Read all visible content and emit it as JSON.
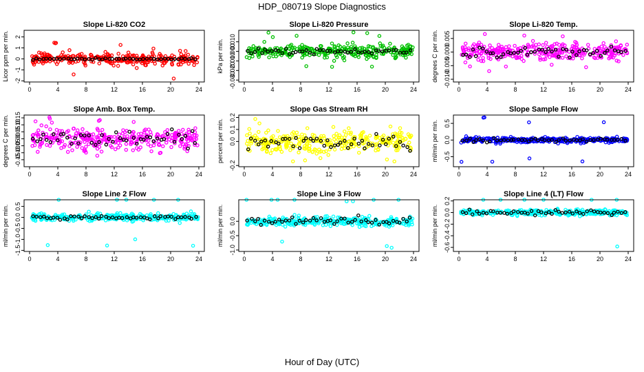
{
  "figure": {
    "title": "HDP_080719  Slope Diagnostics",
    "xlabel": "Hour of Day (UTC)"
  },
  "chart_data": [
    {
      "type": "scatter",
      "title": "Slope Li-820 CO2",
      "ylabel": "Licor ppm per min.",
      "color": "#ff0000",
      "xlim": [
        0,
        24
      ],
      "ylim": [
        -2.1,
        2.6
      ],
      "yticks": [
        "-2",
        "-1",
        "0",
        "1",
        "2"
      ],
      "ytick_values": [
        -2,
        -1,
        0,
        1,
        2
      ],
      "xticks": [
        "0",
        "4",
        "8",
        "12",
        "16",
        "20",
        "24"
      ],
      "spread": 0.45,
      "outlier": 1.8,
      "blackspread": 0.08
    },
    {
      "type": "scatter",
      "title": "Slope Li-820 Pressure",
      "ylabel": "kPa per min.",
      "color": "#00c000",
      "xlim": [
        0,
        24
      ],
      "ylim": [
        -0.032,
        0.022
      ],
      "yticks": [
        "-0.030",
        "-0.020",
        "-0.010",
        "0.000",
        "0.010"
      ],
      "ytick_values": [
        -0.03,
        -0.02,
        -0.01,
        0,
        0.01
      ],
      "xticks": [
        "0",
        "4",
        "8",
        "12",
        "16",
        "20",
        "24"
      ],
      "spread": 0.006,
      "outlier": 0.02,
      "blackspread": 0.002
    },
    {
      "type": "scatter",
      "title": "Slope Li-820 Temp.",
      "ylabel": "degrees C per min.",
      "color": "#ff00ff",
      "xlim": [
        0,
        24
      ],
      "ylim": [
        -0.011,
        0.008
      ],
      "yticks": [
        "-0.010",
        "-0.005",
        "0.000",
        "0.005"
      ],
      "ytick_values": [
        -0.01,
        -0.005,
        0,
        0.005
      ],
      "xticks": [
        "0",
        "4",
        "8",
        "12",
        "16",
        "20",
        "24"
      ],
      "spread": 0.003,
      "outlier": 0.007,
      "blackspread": 0.0015
    },
    {
      "type": "scatter",
      "title": "Slope Amb. Box Temp.",
      "ylabel": "degrees C per min.",
      "color": "#ff00ff",
      "xlim": [
        0,
        24
      ],
      "ylim": [
        -0.2,
        0.17
      ],
      "yticks": [
        "-0.15",
        "-0.10",
        "-0.05",
        "0.00",
        "0.05",
        "0.10",
        "0.15"
      ],
      "ytick_values": [
        -0.15,
        -0.1,
        -0.05,
        0,
        0.05,
        0.1,
        0.15
      ],
      "xticks": [
        "0",
        "4",
        "8",
        "12",
        "16",
        "20",
        "24"
      ],
      "spread": 0.07,
      "outlier": 0.16,
      "blackspread": 0.05
    },
    {
      "type": "scatter",
      "title": "Slope Gas Stream RH",
      "ylabel": "percent per min.",
      "color": "#ffff00",
      "xlim": [
        0,
        24
      ],
      "ylim": [
        -0.21,
        0.22
      ],
      "yticks": [
        "-0.2",
        "0.0",
        "0.1",
        "0.2"
      ],
      "ytick_values": [
        -0.2,
        0,
        0.1,
        0.2
      ],
      "xticks": [
        "0",
        "4",
        "8",
        "12",
        "16",
        "20",
        "24"
      ],
      "spread": 0.08,
      "outlier": 0.19,
      "blackspread": 0.06
    },
    {
      "type": "scatter",
      "title": "Slope Sample Flow",
      "ylabel": "ml/min per min.",
      "color": "#0000ff",
      "xlim": [
        0,
        24
      ],
      "ylim": [
        -0.8,
        0.75
      ],
      "yticks": [
        "-0.5",
        "0.0",
        "0.5"
      ],
      "ytick_values": [
        -0.5,
        0,
        0.5
      ],
      "xticks": [
        "0",
        "4",
        "8",
        "12",
        "16",
        "20",
        "24"
      ],
      "spread": 0.07,
      "outlier": 0.7,
      "blackspread": 0.04
    },
    {
      "type": "scatter",
      "title": "Slope Line 2 Flow",
      "ylabel": "ml/min per min.",
      "color": "#00ffff",
      "xlim": [
        0,
        24
      ],
      "ylim": [
        -1.55,
        0.8
      ],
      "yticks": [
        "-1.5",
        "-1.0",
        "-0.5",
        "0.0",
        "0.5"
      ],
      "ytick_values": [
        -1.5,
        -1,
        -0.5,
        0,
        0.5
      ],
      "xticks": [
        "0",
        "4",
        "8",
        "12",
        "16",
        "20",
        "24"
      ],
      "spread": 0.15,
      "outlier": 1.4,
      "blackspread": 0.07
    },
    {
      "type": "scatter",
      "title": "Slope Line 3 Flow",
      "ylabel": "ml/min per min.",
      "color": "#00ffff",
      "xlim": [
        0,
        24
      ],
      "ylim": [
        -1.05,
        0.75
      ],
      "yticks": [
        "-1.0",
        "-0.5",
        "0.0"
      ],
      "ytick_values": [
        -1,
        -0.5,
        0
      ],
      "xticks": [
        "0",
        "4",
        "8",
        "12",
        "16",
        "20",
        "24"
      ],
      "spread": 0.15,
      "outlier": 0.95,
      "blackspread": 0.15
    },
    {
      "type": "scatter",
      "title": "Slope Line 4 (LT) Flow",
      "ylabel": "ml/min per min.",
      "color": "#00ffff",
      "xlim": [
        0,
        24
      ],
      "ylim": [
        -0.67,
        0.22
      ],
      "yticks": [
        "-0.6",
        "-0.4",
        "-0.2",
        "0.0",
        "0.2"
      ],
      "ytick_values": [
        -0.6,
        -0.4,
        -0.2,
        0,
        0.2
      ],
      "xticks": [
        "0",
        "4",
        "8",
        "12",
        "16",
        "20",
        "24"
      ],
      "spread": 0.04,
      "outlier": 0.62,
      "blackspread": 0.03
    }
  ]
}
